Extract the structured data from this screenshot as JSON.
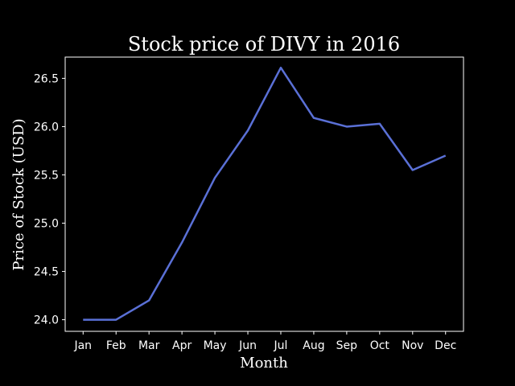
{
  "chart_data": {
    "type": "line",
    "title": "Stock price of DIVY in 2016",
    "xlabel": "Month",
    "ylabel": "Price of Stock (USD)",
    "categories": [
      "Jan",
      "Feb",
      "Mar",
      "Apr",
      "May",
      "Jun",
      "Jul",
      "Aug",
      "Sep",
      "Oct",
      "Nov",
      "Dec"
    ],
    "series": [
      {
        "values": [
          24.0,
          24.0,
          24.2,
          24.8,
          25.47,
          25.96,
          26.61,
          26.09,
          26.0,
          26.03,
          25.55,
          25.7
        ],
        "color": "#5a70d6"
      }
    ],
    "yticks": [
      "24.0",
      "24.5",
      "25.0",
      "25.5",
      "26.0",
      "26.5"
    ],
    "ylim": [
      23.88,
      26.72
    ],
    "grid": false,
    "background": "#000000",
    "foreground": "#ffffff"
  }
}
